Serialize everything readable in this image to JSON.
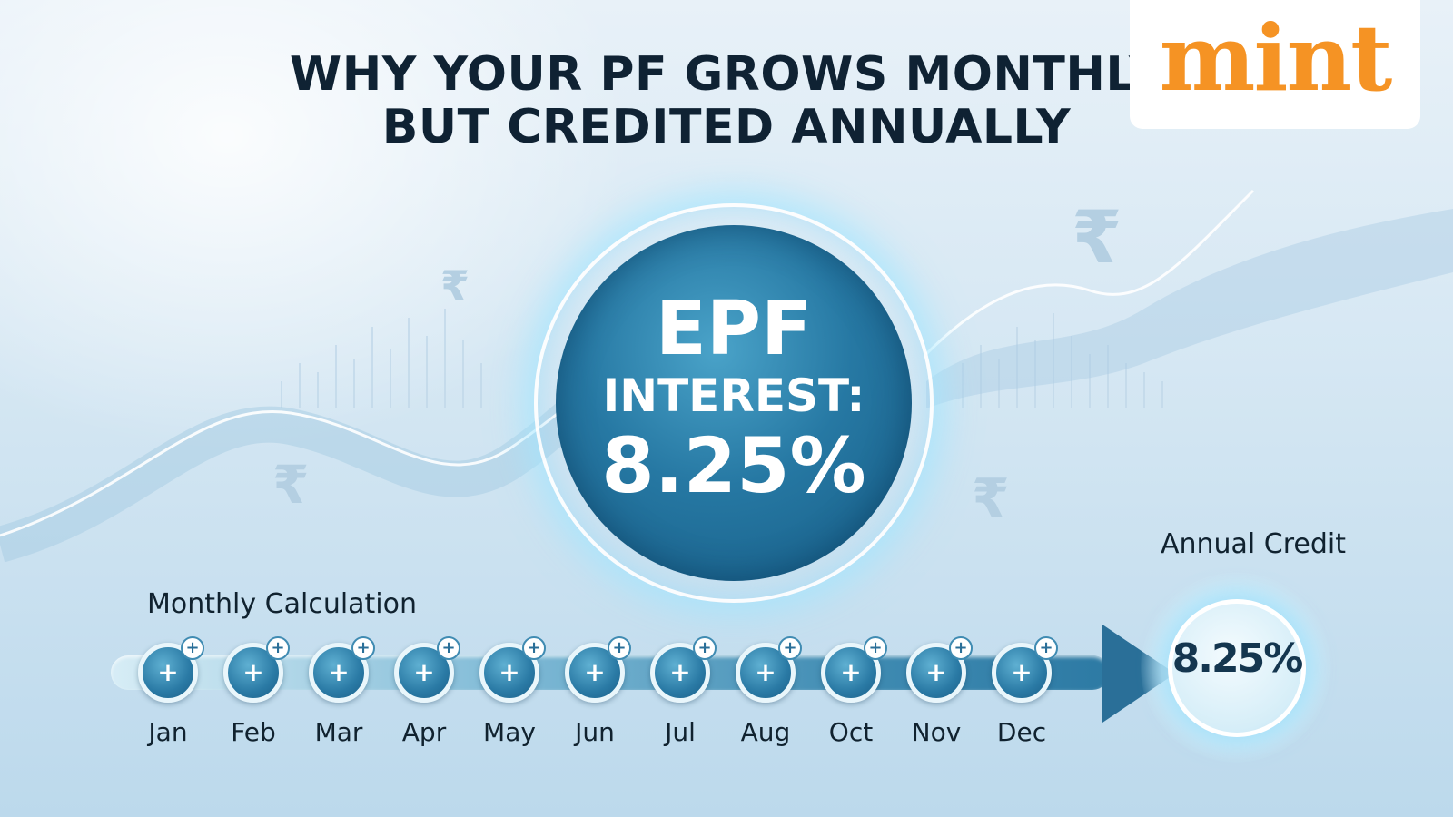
{
  "title": {
    "line1": "WHY YOUR PF GROWS MONTHLY",
    "line2": "BUT CREDITED ANNUALLY"
  },
  "logo": {
    "text": "mint",
    "color": "#f59324"
  },
  "center": {
    "line1": "EPF",
    "line2": "INTEREST:",
    "line3": "8.25%"
  },
  "monthly_label": "Monthly Calculation",
  "annual_label": "Annual Credit",
  "annual_value": "8.25%",
  "months": [
    "Jan",
    "Feb",
    "Mar",
    "Apr",
    "May",
    "Jun",
    "Jul",
    "Aug",
    "Oct",
    "Nov",
    "Dec"
  ],
  "node_symbol": "+",
  "rupee_symbol": "₹",
  "colors": {
    "dark_text": "#0f2233",
    "accent_blue": "#2a6f98",
    "brand_orange": "#f59324"
  }
}
